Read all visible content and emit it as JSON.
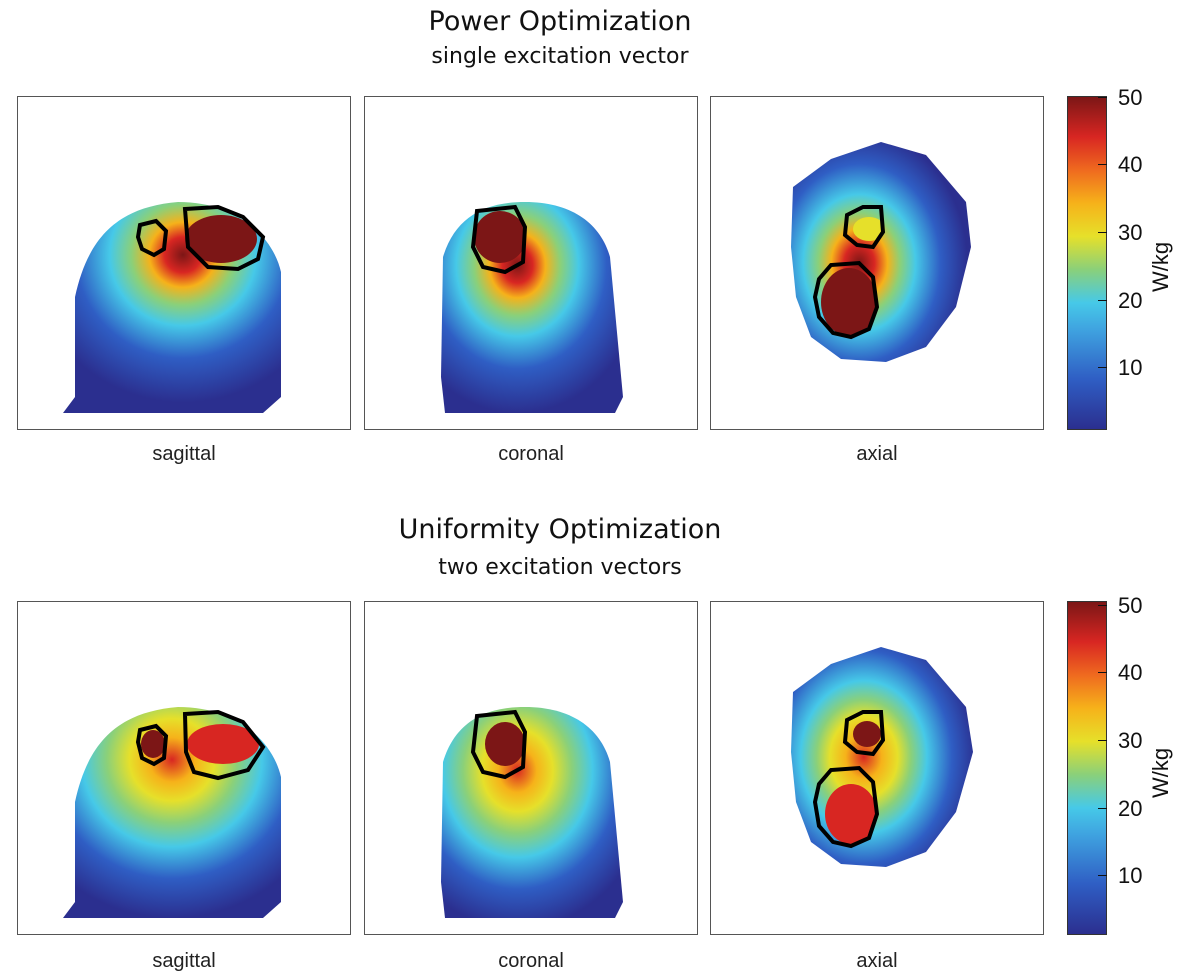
{
  "figure": {
    "rows": [
      {
        "title": "Power Optimization",
        "subtitle": "single excitation vector",
        "panels": [
          {
            "label": "sagittal"
          },
          {
            "label": "coronal"
          },
          {
            "label": "axial"
          }
        ],
        "colorbar": {
          "label": "W/kg",
          "ticks": [
            "50",
            "40",
            "30",
            "20",
            "10"
          ]
        }
      },
      {
        "title": "Uniformity Optimization",
        "subtitle": "two excitation vectors",
        "panels": [
          {
            "label": "sagittal"
          },
          {
            "label": "coronal"
          },
          {
            "label": "axial"
          }
        ],
        "colorbar": {
          "label": "W/kg",
          "ticks": [
            "50",
            "40",
            "30",
            "20",
            "10"
          ]
        }
      }
    ]
  },
  "chart_data": {
    "type": "heatmap",
    "colorbar": {
      "label": "W/kg",
      "ticks": [
        50,
        40,
        30,
        20,
        10
      ],
      "range": [
        1,
        50
      ]
    },
    "colormap": [
      "#2b2f8f",
      "#2f5ec4",
      "#3fa3e0",
      "#46c9e8",
      "#8ad07a",
      "#e6e02a",
      "#f6b21a",
      "#ef6a1f",
      "#d82622",
      "#7c1616"
    ],
    "panels": [
      "sagittal",
      "coronal",
      "axial"
    ],
    "series": [
      {
        "title": "Power Optimization",
        "subtitle": "single excitation vector"
      },
      {
        "title": "Uniformity Optimization",
        "subtitle": "two excitation vectors"
      }
    ]
  }
}
